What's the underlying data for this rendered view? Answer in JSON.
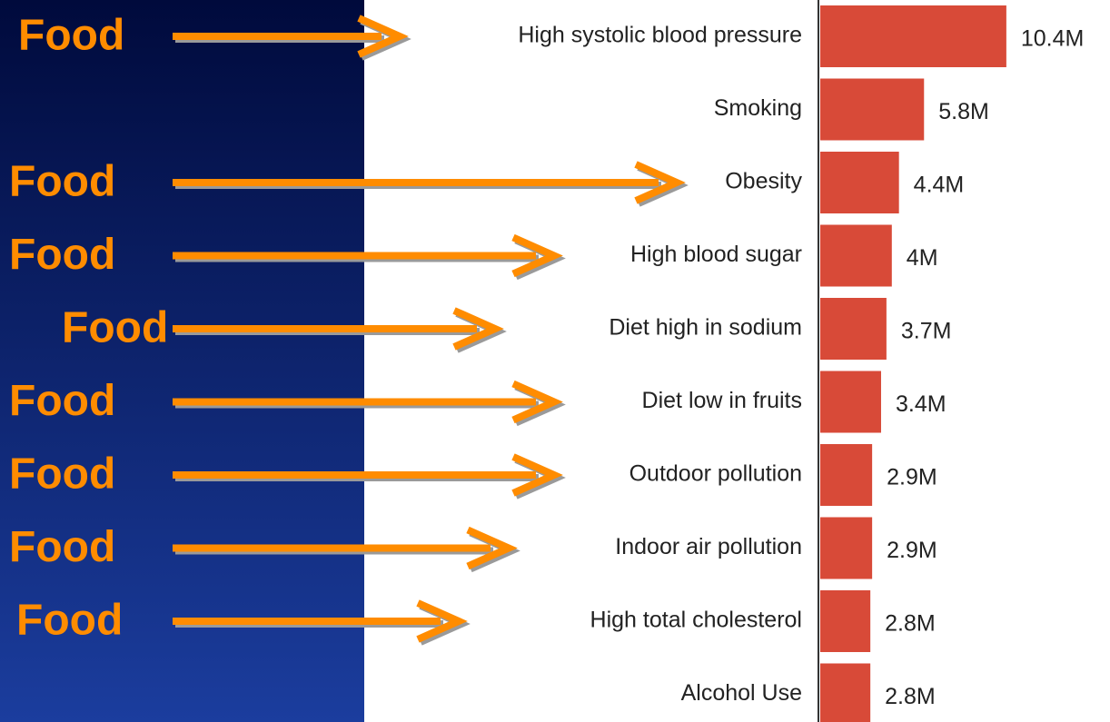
{
  "chart_data": {
    "type": "bar",
    "orientation": "horizontal",
    "categories": [
      "High systolic blood pressure",
      "Smoking",
      "Obesity",
      "High blood sugar",
      "Diet high in sodium",
      "Diet low in fruits",
      "Outdoor pollution",
      "Indoor air pollution",
      "High total cholesterol",
      "Alcohol Use"
    ],
    "values": [
      10.4,
      5.8,
      4.4,
      4,
      3.7,
      3.4,
      2.9,
      2.9,
      2.8,
      2.8
    ],
    "value_labels": [
      "10.4M",
      "5.8M",
      "4.4M",
      "4M",
      "3.7M",
      "3.4M",
      "2.9M",
      "2.9M",
      "2.8M",
      "2.8M"
    ],
    "color": "#d84a38",
    "annotations": [
      "Food",
      "Food",
      "Food",
      "Food",
      "Food",
      "Food",
      "Food",
      "Food"
    ]
  }
}
